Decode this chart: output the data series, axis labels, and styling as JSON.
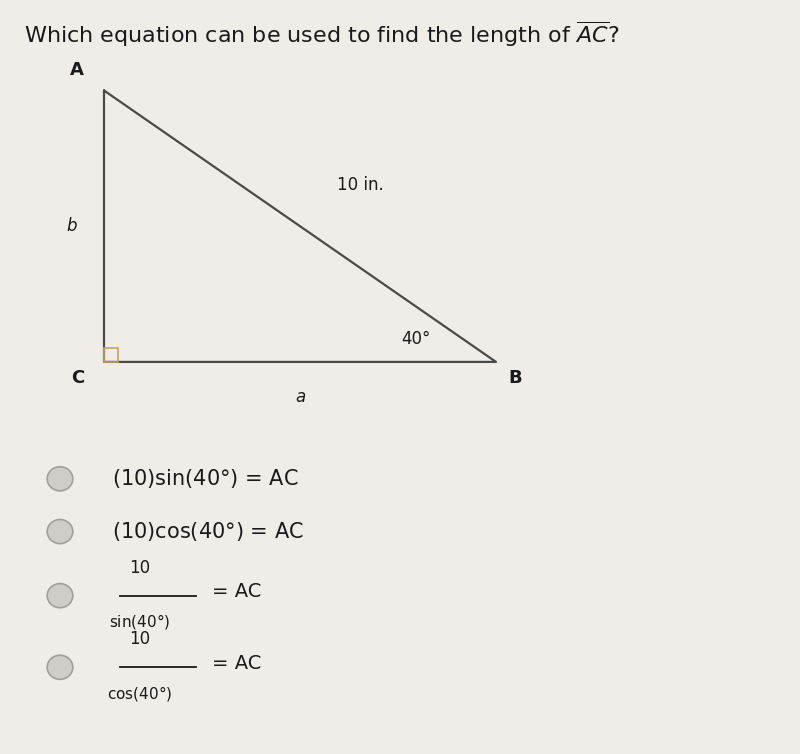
{
  "bg_color": "#f0ede8",
  "title_full": "Which equation can be used to find the length of $\\overline{AC}$?",
  "triangle": {
    "A": [
      0.13,
      0.88
    ],
    "C": [
      0.13,
      0.52
    ],
    "B": [
      0.62,
      0.52
    ]
  },
  "label_A": "A",
  "label_B": "B",
  "label_C": "C",
  "label_a": "a",
  "label_b": "b",
  "label_hyp": "10 in.",
  "label_angle": "40°",
  "text_color": "#1a1a1a",
  "line_color": "#4a4a4a",
  "right_angle_color": "#c8a060",
  "radio_fill": "#d0cdc8",
  "radio_edge": "#a0a09a",
  "opt1": "(10)sin(40°) = AC",
  "opt2": "(10)cos(40°) = AC",
  "frac_num": "10",
  "frac_sin_denom": "sin(40°)",
  "frac_cos_denom": "cos(40°)",
  "eq_ac": "= AC"
}
